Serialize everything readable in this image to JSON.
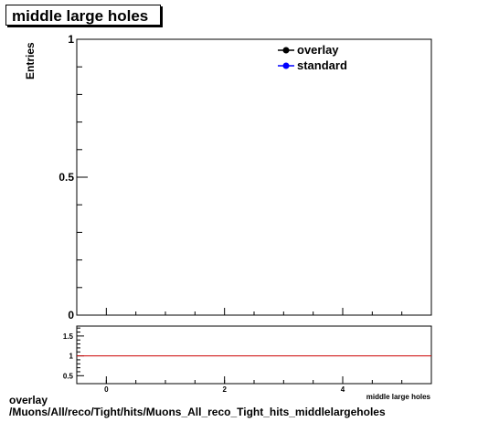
{
  "chart_data": [
    {
      "type": "line",
      "title": "middle large holes",
      "ylabel": "Entries",
      "xlabel": "",
      "xlim": [
        -0.5,
        5.5
      ],
      "ylim": [
        0,
        1
      ],
      "y_ticks": [
        0,
        0.5,
        1
      ],
      "y_tick_labels": [
        "0",
        "0.5",
        "1"
      ],
      "series": [
        {
          "name": "overlay",
          "color": "#000000",
          "marker": "circle",
          "x": [],
          "y": []
        },
        {
          "name": "standard",
          "color": "#0000ff",
          "marker": "circle",
          "x": [],
          "y": []
        }
      ],
      "legend": "top-right",
      "grid": false
    },
    {
      "type": "line",
      "title": "",
      "xlabel": "middle large holes",
      "ylabel": "",
      "xlim": [
        -0.5,
        5.5
      ],
      "ylim": [
        0.3,
        1.75
      ],
      "x_ticks": [
        0,
        2,
        4
      ],
      "x_tick_labels": [
        "0",
        "2",
        "4"
      ],
      "y_ticks": [
        0.5,
        1,
        1.5
      ],
      "y_tick_labels": [
        "0.5",
        "1",
        "1.5"
      ],
      "reference_line": {
        "y": 1,
        "color": "#cc0000"
      },
      "grid": false
    }
  ],
  "footer": {
    "line1": "overlay",
    "line2": "/Muons/All/reco/Tight/hits/Muons_All_reco_Tight_hits_middlelargeholes"
  }
}
